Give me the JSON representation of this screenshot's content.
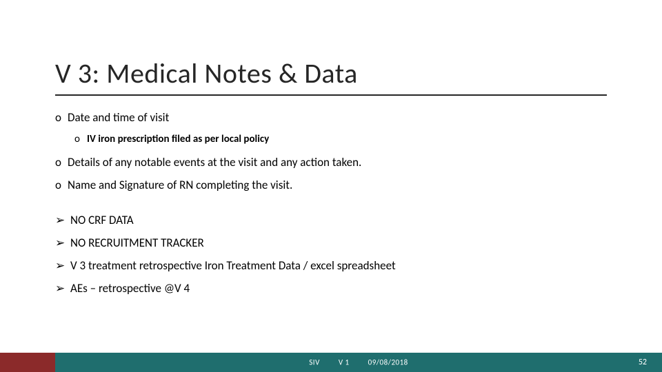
{
  "title": "V 3: Medical Notes & Data",
  "bullets_o": [
    "Date and time of visit",
    "Details of any notable events at the visit and any action taken.",
    "Name and Signature of RN completing the visit."
  ],
  "sub_bullet": "IV iron prescription filed as per local policy",
  "bullets_arrow": [
    "NO CRF DATA",
    "NO RECRUITMENT TRACKER",
    "V 3 treatment retrospective Iron Treatment Data / excel spreadsheet",
    "AEs – retrospective @V 4"
  ],
  "footer": {
    "left": "SIV",
    "mid": "V 1",
    "right": "09/08/2018",
    "page": "52",
    "bar_colors": {
      "red": "#8b2a2a",
      "teal": "#1f6e6e"
    }
  },
  "style": {
    "title_fontsize": 40,
    "title_underline_color": "#262626",
    "body_fontsize": 17,
    "sub_fontsize": 15,
    "o_marker": "o",
    "arrow_marker": "➢",
    "background": "#ffffff",
    "text_color": "#000000"
  }
}
